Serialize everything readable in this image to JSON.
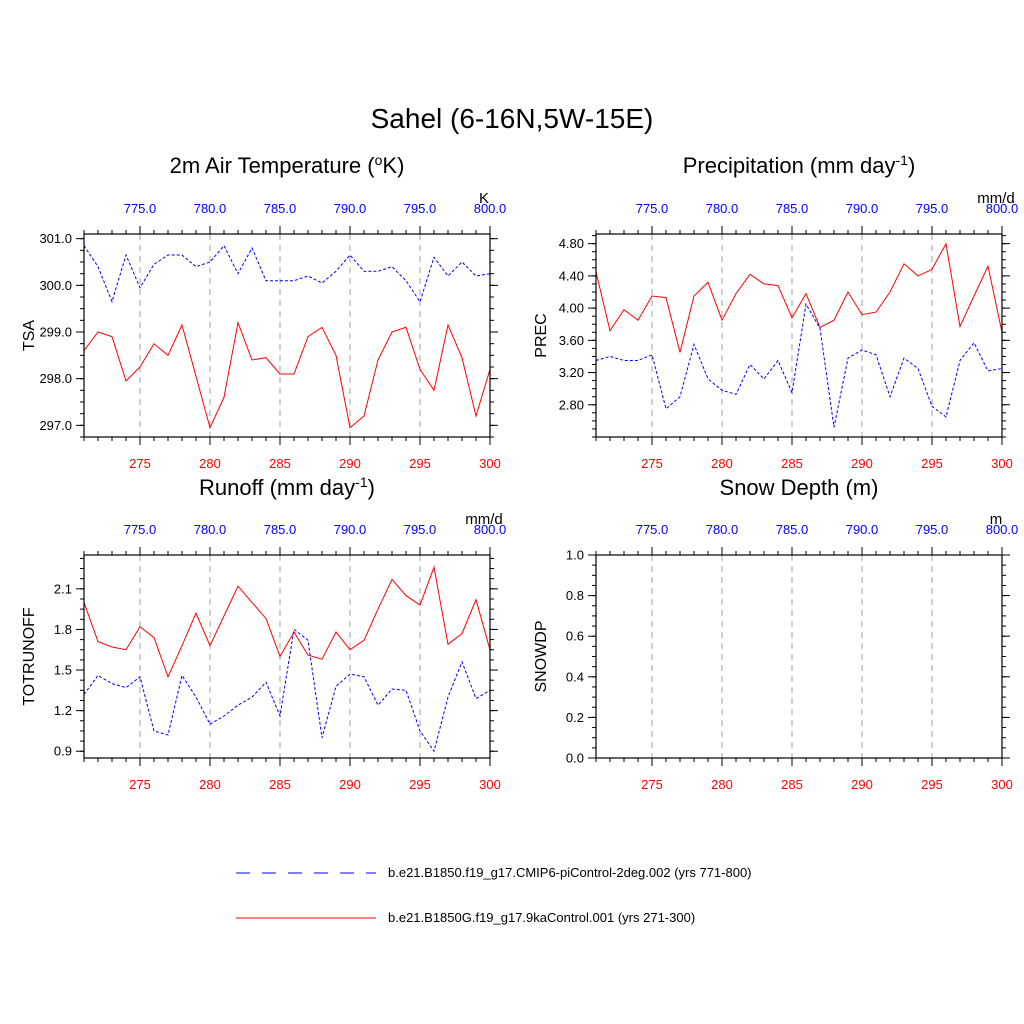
{
  "title": "Sahel (6-16N,5W-15E)",
  "colors": {
    "control": "#ff0000",
    "picontrol": "#0000ff",
    "frame": "#000000",
    "grid": "#a0a0a0"
  },
  "legend": [
    {
      "label": "b.e21.B1850.f19_g17.CMIP6-piControl-2deg.002 (yrs 771-800)",
      "color": "#0000ff",
      "style": "dashed"
    },
    {
      "label": "b.e21.B1850G.f19_g17.9kaControl.001 (yrs 271-300)",
      "color": "#ff0000",
      "style": "solid"
    }
  ],
  "chart_data": [
    {
      "type": "line",
      "title": "2m Air Temperature",
      "title_unit": "K",
      "ylabel": "TSA",
      "units": "K",
      "xlim": [
        271,
        300
      ],
      "x_ticks": [
        "275",
        "280",
        "285",
        "290",
        "295",
        "300"
      ],
      "x2lim": [
        771,
        800
      ],
      "x2_ticks": [
        "775.0",
        "780.0",
        "785.0",
        "790.0",
        "795.0",
        "800.0"
      ],
      "ylim": [
        296.75,
        301.1
      ],
      "y_ticks": [
        "297.0",
        "298.0",
        "299.0",
        "300.0",
        "301.0"
      ],
      "y_tick_values": [
        297,
        298,
        299,
        300,
        301
      ],
      "grid": "vertical dashed",
      "series": [
        {
          "key": "control",
          "x": [
            271,
            272,
            273,
            274,
            275,
            276,
            277,
            278,
            279,
            280,
            281,
            282,
            283,
            284,
            285,
            286,
            287,
            288,
            289,
            290,
            291,
            292,
            293,
            294,
            295,
            296,
            297,
            298,
            299,
            300
          ],
          "values": [
            298.6,
            299.0,
            298.9,
            297.95,
            298.25,
            298.75,
            298.5,
            299.15,
            298.05,
            296.95,
            297.6,
            299.2,
            298.4,
            298.45,
            298.1,
            298.1,
            298.9,
            299.1,
            298.5,
            296.95,
            297.2,
            298.4,
            299.0,
            299.1,
            298.2,
            297.75,
            299.15,
            298.45,
            297.2,
            298.2
          ]
        },
        {
          "key": "picontrol",
          "x": [
            271,
            272,
            273,
            274,
            275,
            276,
            277,
            278,
            279,
            280,
            281,
            282,
            283,
            284,
            285,
            286,
            287,
            288,
            289,
            290,
            291,
            292,
            293,
            294,
            295,
            296,
            297,
            298,
            299,
            300
          ],
          "values": [
            300.85,
            300.4,
            299.65,
            300.65,
            299.95,
            300.45,
            300.65,
            300.65,
            300.4,
            300.5,
            300.85,
            300.25,
            300.8,
            300.1,
            300.1,
            300.1,
            300.2,
            300.05,
            300.3,
            300.65,
            300.3,
            300.3,
            300.4,
            300.1,
            299.65,
            300.6,
            300.2,
            300.5,
            300.2,
            300.25
          ]
        }
      ]
    },
    {
      "type": "line",
      "title": "Precipitation",
      "title_unit": "mm day",
      "ylabel": "PREC",
      "units": "mm/d",
      "xlim": [
        271,
        300
      ],
      "x_ticks": [
        "275",
        "280",
        "285",
        "290",
        "295",
        "300"
      ],
      "x2lim": [
        771,
        800
      ],
      "x2_ticks": [
        "775.0",
        "780.0",
        "785.0",
        "790.0",
        "795.0",
        "800.0"
      ],
      "ylim": [
        2.4,
        4.92
      ],
      "y_ticks": [
        "2.80",
        "3.20",
        "3.60",
        "4.00",
        "4.40",
        "4.80"
      ],
      "y_tick_values": [
        2.8,
        3.2,
        3.6,
        4.0,
        4.4,
        4.8
      ],
      "grid": "vertical dashed",
      "series": [
        {
          "key": "control",
          "x": [
            271,
            272,
            273,
            274,
            275,
            276,
            277,
            278,
            279,
            280,
            281,
            282,
            283,
            284,
            285,
            286,
            287,
            288,
            289,
            290,
            291,
            292,
            293,
            294,
            295,
            296,
            297,
            298,
            299,
            300
          ],
          "values": [
            4.45,
            3.72,
            3.98,
            3.85,
            4.15,
            4.13,
            3.45,
            4.15,
            4.32,
            3.85,
            4.18,
            4.42,
            4.3,
            4.28,
            3.88,
            4.18,
            3.76,
            3.85,
            4.2,
            3.92,
            3.95,
            4.2,
            4.55,
            4.4,
            4.48,
            4.8,
            3.77,
            4.15,
            4.52,
            3.7
          ]
        },
        {
          "key": "picontrol",
          "x": [
            271,
            272,
            273,
            274,
            275,
            276,
            277,
            278,
            279,
            280,
            281,
            282,
            283,
            284,
            285,
            286,
            287,
            288,
            289,
            290,
            291,
            292,
            293,
            294,
            295,
            296,
            297,
            298,
            299,
            300
          ],
          "values": [
            3.35,
            3.4,
            3.35,
            3.35,
            3.42,
            2.75,
            2.9,
            3.55,
            3.12,
            2.98,
            2.93,
            3.3,
            3.12,
            3.35,
            2.95,
            4.05,
            3.75,
            2.52,
            3.38,
            3.48,
            3.42,
            2.9,
            3.38,
            3.25,
            2.78,
            2.65,
            3.35,
            3.57,
            3.22,
            3.25
          ]
        }
      ]
    },
    {
      "type": "line",
      "title": "Runoff",
      "title_unit": "mm day",
      "ylabel": "TOTRUNOFF",
      "units": "mm/d",
      "xlim": [
        271,
        300
      ],
      "x_ticks": [
        "275",
        "280",
        "285",
        "290",
        "295",
        "300"
      ],
      "x2lim": [
        771,
        800
      ],
      "x2_ticks": [
        "775.0",
        "780.0",
        "785.0",
        "790.0",
        "795.0",
        "800.0"
      ],
      "ylim": [
        0.85,
        2.35
      ],
      "y_ticks": [
        "0.9",
        "1.2",
        "1.5",
        "1.8",
        "2.1"
      ],
      "y_tick_values": [
        0.9,
        1.2,
        1.5,
        1.8,
        2.1
      ],
      "grid": "vertical dashed",
      "series": [
        {
          "key": "control",
          "x": [
            271,
            272,
            273,
            274,
            275,
            276,
            277,
            278,
            279,
            280,
            281,
            282,
            283,
            284,
            285,
            286,
            287,
            288,
            289,
            290,
            291,
            292,
            293,
            294,
            295,
            296,
            297,
            298,
            299,
            300
          ],
          "values": [
            2.0,
            1.71,
            1.67,
            1.65,
            1.82,
            1.74,
            1.45,
            1.68,
            1.92,
            1.68,
            1.9,
            2.12,
            2.0,
            1.88,
            1.6,
            1.78,
            1.61,
            1.58,
            1.78,
            1.65,
            1.72,
            1.95,
            2.17,
            2.05,
            1.98,
            2.26,
            1.69,
            1.77,
            2.02,
            1.65
          ]
        },
        {
          "key": "picontrol",
          "x": [
            271,
            272,
            273,
            274,
            275,
            276,
            277,
            278,
            279,
            280,
            281,
            282,
            283,
            284,
            285,
            286,
            287,
            288,
            289,
            290,
            291,
            292,
            293,
            294,
            295,
            296,
            297,
            298,
            299,
            300
          ],
          "values": [
            1.32,
            1.46,
            1.4,
            1.37,
            1.45,
            1.05,
            1.02,
            1.46,
            1.3,
            1.1,
            1.16,
            1.24,
            1.3,
            1.41,
            1.16,
            1.8,
            1.72,
            1.0,
            1.38,
            1.47,
            1.45,
            1.24,
            1.36,
            1.35,
            1.05,
            0.9,
            1.3,
            1.56,
            1.29,
            1.35
          ]
        }
      ]
    },
    {
      "type": "line",
      "title": "Snow Depth (m)",
      "title_unit": "",
      "ylabel": "SNOWDP",
      "units": "m",
      "xlim": [
        271,
        300
      ],
      "x_ticks": [
        "275",
        "280",
        "285",
        "290",
        "295",
        "300"
      ],
      "x2lim": [
        771,
        800
      ],
      "x2_ticks": [
        "775.0",
        "780.0",
        "785.0",
        "790.0",
        "795.0",
        "800.0"
      ],
      "ylim": [
        0.0,
        1.0
      ],
      "y_ticks": [
        "0.0",
        "0.2",
        "0.4",
        "0.6",
        "0.8",
        "1.0"
      ],
      "y_tick_values": [
        0.0,
        0.2,
        0.4,
        0.6,
        0.8,
        1.0
      ],
      "grid": "vertical dashed",
      "series": []
    }
  ]
}
